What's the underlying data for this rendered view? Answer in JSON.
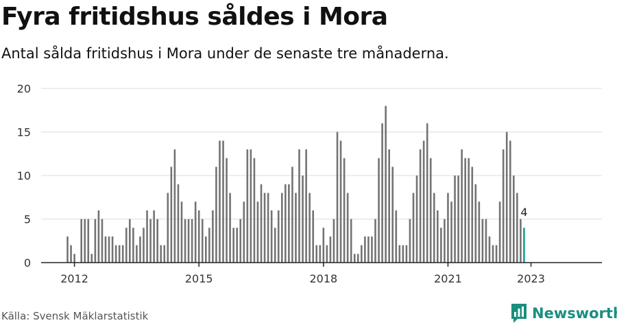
{
  "header": {
    "title": "Fyra fritidshus såldes i Mora",
    "subtitle": "Antal sålda fritidshus i Mora under de senaste tre månaderna."
  },
  "footer": {
    "source": "Källa: Svensk Mäklarstatistik",
    "brand": "Newsworthy"
  },
  "colors": {
    "bar": "#737373",
    "highlight": "#1a9e8c",
    "grid": "#dddddd",
    "brand": "#1a8f7e"
  },
  "chart_data": {
    "type": "bar",
    "ylim": [
      0,
      20
    ],
    "y_ticks": [
      0,
      5,
      10,
      15,
      20
    ],
    "x_ticks": [
      {
        "label": "2012",
        "index": 2
      },
      {
        "label": "2015",
        "index": 38
      },
      {
        "label": "2018",
        "index": 74
      },
      {
        "label": "2021",
        "index": 110
      },
      {
        "label": "2023",
        "index": 134
      }
    ],
    "grid": true,
    "values": [
      3,
      2,
      1,
      0,
      5,
      5,
      5,
      1,
      5,
      6,
      5,
      3,
      3,
      3,
      2,
      2,
      2,
      4,
      5,
      4,
      2,
      3,
      4,
      6,
      5,
      6,
      5,
      2,
      2,
      8,
      11,
      13,
      9,
      7,
      5,
      5,
      5,
      7,
      6,
      5,
      3,
      4,
      6,
      11,
      14,
      14,
      12,
      8,
      4,
      4,
      5,
      7,
      13,
      13,
      12,
      7,
      9,
      8,
      8,
      6,
      4,
      6,
      8,
      9,
      9,
      11,
      8,
      13,
      10,
      13,
      8,
      6,
      2,
      2,
      4,
      2,
      3,
      5,
      15,
      14,
      12,
      8,
      5,
      1,
      1,
      2,
      3,
      3,
      3,
      5,
      12,
      16,
      18,
      13,
      11,
      6,
      2,
      2,
      2,
      5,
      8,
      10,
      13,
      14,
      16,
      12,
      8,
      6,
      4,
      5,
      8,
      7,
      10,
      10,
      13,
      12,
      12,
      11,
      9,
      7,
      5,
      5,
      3,
      2,
      2,
      7,
      13,
      15,
      14,
      10,
      8,
      5,
      4
    ],
    "highlight_label": "4"
  }
}
